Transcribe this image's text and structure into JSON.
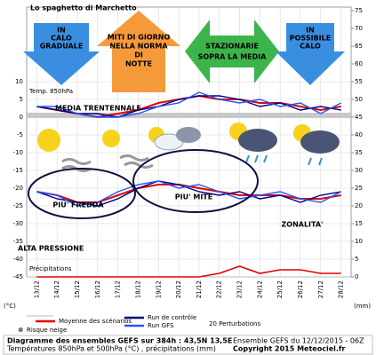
{
  "chart_data": {
    "type": "line",
    "title": "Lo spaghetto di Marchetto",
    "categories": [
      "13/12",
      "14/12",
      "15/12",
      "16/12",
      "17/12",
      "18/12",
      "19/12",
      "20/12",
      "21/12",
      "22/12",
      "23/12",
      "24/12",
      "25/12",
      "26/12",
      "27/12",
      "28/12"
    ],
    "ylim": [
      -45,
      31
    ],
    "yticks": [
      -45,
      -40,
      -35,
      -30,
      -25,
      -20,
      -15,
      -10,
      -5,
      0,
      5,
      10
    ],
    "y2lim": [
      0,
      76
    ],
    "y2ticks": [
      0,
      5,
      10,
      15,
      20,
      25,
      30,
      35,
      40,
      45,
      50,
      55,
      60,
      65,
      70,
      75
    ],
    "grid": true,
    "y_unit": "(°C)",
    "y2_unit": "(mm)",
    "series": [
      {
        "name": "Moyenne des scénarios",
        "color": "#e00000",
        "values": [
          3,
          2,
          1,
          0,
          1,
          2,
          4,
          5,
          6,
          5,
          5,
          4,
          4,
          3,
          2,
          3
        ],
        "values_500": [
          -21,
          -22,
          -24,
          -24,
          -22,
          -20,
          -19,
          -19,
          -20,
          -21,
          -22,
          -22,
          -22,
          -23,
          -23,
          -22
        ]
      },
      {
        "name": "Run de contrôle",
        "color": "#000080",
        "values": [
          3,
          2,
          1,
          1,
          0,
          2,
          3,
          5,
          6,
          6,
          5,
          3,
          4,
          2,
          3,
          2
        ],
        "values_500": [
          -21,
          -23,
          -24,
          -25,
          -23,
          -20,
          -18,
          -19,
          -21,
          -22,
          -21,
          -23,
          -22,
          -24,
          -22,
          -21
        ]
      },
      {
        "name": "Run GFS",
        "color": "#1e5aff",
        "values": [
          3,
          3,
          1,
          0,
          0,
          1,
          3,
          4,
          7,
          5,
          4,
          5,
          3,
          4,
          1,
          4
        ],
        "values_500": [
          -21,
          -22,
          -25,
          -24,
          -21,
          -19,
          -18,
          -20,
          -19,
          -21,
          -23,
          -22,
          -21,
          -23,
          -24,
          -21
        ]
      }
    ],
    "precipitation": {
      "color": "#e00000",
      "axis": "y2",
      "values": [
        0,
        0,
        0,
        0,
        0,
        0,
        0,
        0,
        0,
        1,
        3,
        1,
        2,
        2,
        1,
        1
      ]
    },
    "labels": {
      "temp": "Temp. 850hPa",
      "precip": "Précipitations",
      "perturbations": "20 Perturbations",
      "snow": "Risque neige"
    },
    "arrows": [
      {
        "lines": [
          "IN",
          "CALO",
          "GRADUALE"
        ]
      },
      {
        "lines": [
          "MITI DI GIORNO",
          "NELLA NORMA",
          "DI",
          "NOTTE"
        ]
      },
      {
        "lines": [
          "STAZIONARIE",
          "SOPRA LA MEDIA"
        ]
      },
      {
        "lines": [
          "IN",
          "POSSIBILE",
          "CALO"
        ]
      }
    ],
    "annotations": {
      "media": "MEDIA TRENTENNALE",
      "fredda": "PIU' FREDDA",
      "mite": "PIU' MITE",
      "zonalita": "ZONALITA'",
      "alta": "ALTA PRESSIONE"
    },
    "footer": {
      "line1": "Diagramme des ensembles GEFS sur 384h : 43,5N 13,5E",
      "line2": "Températures 850hPa et 500hPa (°C) , précipitations (mm)",
      "run": "Ensemble GEFS du 12/12/2015 - 06Z",
      "copyright": "Copyright 2015 Meteociel.fr"
    }
  }
}
